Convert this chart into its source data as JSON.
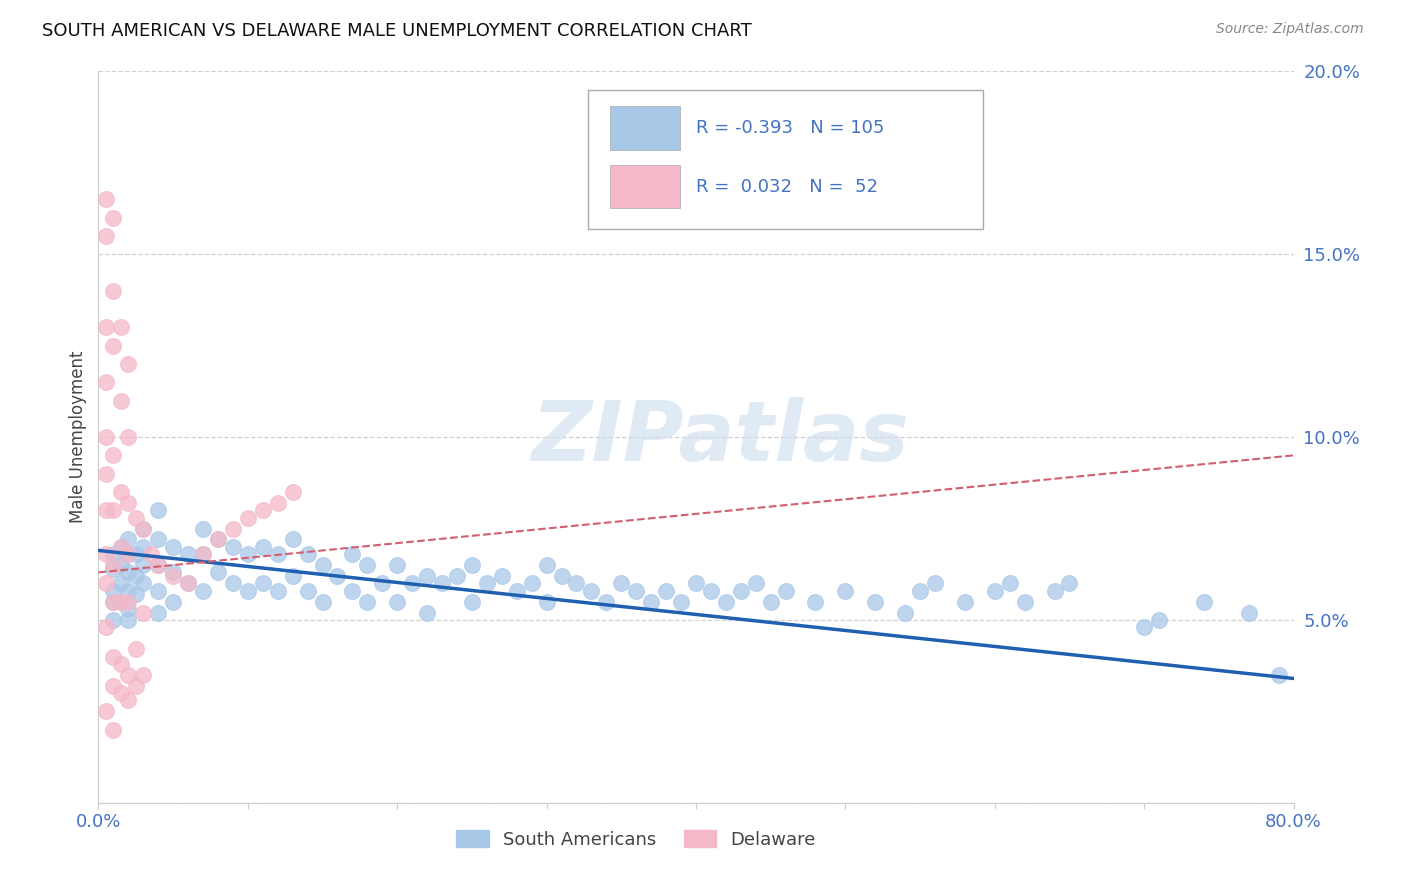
{
  "title": "SOUTH AMERICAN VS DELAWARE MALE UNEMPLOYMENT CORRELATION CHART",
  "source": "Source: ZipAtlas.com",
  "ylabel": "Male Unemployment",
  "xlim": [
    0.0,
    0.8
  ],
  "ylim": [
    0.0,
    0.2
  ],
  "yticks": [
    0.0,
    0.05,
    0.1,
    0.15,
    0.2
  ],
  "ytick_labels_right": [
    "",
    "5.0%",
    "10.0%",
    "15.0%",
    "20.0%"
  ],
  "xticks": [
    0.0,
    0.1,
    0.2,
    0.3,
    0.4,
    0.5,
    0.6,
    0.7,
    0.8
  ],
  "xtick_labels": [
    "0.0%",
    "",
    "",
    "",
    "",
    "",
    "",
    "",
    "80.0%"
  ],
  "blue_R": "-0.393",
  "blue_N": "105",
  "pink_R": "0.032",
  "pink_N": "52",
  "blue_color": "#a8c8e8",
  "pink_color": "#f4b8c8",
  "blue_line_color": "#2060b0",
  "pink_line_color": "#d06070",
  "blue_line_start_y": 0.069,
  "blue_line_end_y": 0.034,
  "pink_line_start_y": 0.063,
  "pink_line_end_y": 0.095,
  "watermark_text": "ZIPatlas",
  "blue_scatter_x": [
    0.01,
    0.01,
    0.01,
    0.01,
    0.01,
    0.015,
    0.015,
    0.015,
    0.015,
    0.02,
    0.02,
    0.02,
    0.02,
    0.02,
    0.02,
    0.025,
    0.025,
    0.025,
    0.03,
    0.03,
    0.03,
    0.03,
    0.04,
    0.04,
    0.04,
    0.04,
    0.04,
    0.05,
    0.05,
    0.05,
    0.06,
    0.06,
    0.07,
    0.07,
    0.07,
    0.08,
    0.08,
    0.09,
    0.09,
    0.1,
    0.1,
    0.11,
    0.11,
    0.12,
    0.12,
    0.13,
    0.13,
    0.14,
    0.14,
    0.15,
    0.15,
    0.16,
    0.17,
    0.17,
    0.18,
    0.18,
    0.19,
    0.2,
    0.2,
    0.21,
    0.22,
    0.22,
    0.23,
    0.24,
    0.25,
    0.25,
    0.26,
    0.27,
    0.28,
    0.29,
    0.3,
    0.3,
    0.31,
    0.32,
    0.33,
    0.34,
    0.35,
    0.36,
    0.37,
    0.38,
    0.39,
    0.4,
    0.41,
    0.42,
    0.43,
    0.44,
    0.45,
    0.46,
    0.48,
    0.5,
    0.52,
    0.54,
    0.55,
    0.56,
    0.58,
    0.6,
    0.61,
    0.62,
    0.64,
    0.65,
    0.7,
    0.71,
    0.74,
    0.77,
    0.79
  ],
  "blue_scatter_y": [
    0.068,
    0.064,
    0.058,
    0.055,
    0.05,
    0.07,
    0.065,
    0.06,
    0.055,
    0.072,
    0.068,
    0.063,
    0.058,
    0.053,
    0.05,
    0.068,
    0.062,
    0.057,
    0.075,
    0.07,
    0.065,
    0.06,
    0.08,
    0.072,
    0.065,
    0.058,
    0.052,
    0.07,
    0.063,
    0.055,
    0.068,
    0.06,
    0.075,
    0.068,
    0.058,
    0.072,
    0.063,
    0.07,
    0.06,
    0.068,
    0.058,
    0.07,
    0.06,
    0.068,
    0.058,
    0.072,
    0.062,
    0.068,
    0.058,
    0.065,
    0.055,
    0.062,
    0.068,
    0.058,
    0.065,
    0.055,
    0.06,
    0.065,
    0.055,
    0.06,
    0.062,
    0.052,
    0.06,
    0.062,
    0.065,
    0.055,
    0.06,
    0.062,
    0.058,
    0.06,
    0.065,
    0.055,
    0.062,
    0.06,
    0.058,
    0.055,
    0.06,
    0.058,
    0.055,
    0.058,
    0.055,
    0.06,
    0.058,
    0.055,
    0.058,
    0.06,
    0.055,
    0.058,
    0.055,
    0.058,
    0.055,
    0.052,
    0.058,
    0.06,
    0.055,
    0.058,
    0.06,
    0.055,
    0.058,
    0.06,
    0.048,
    0.05,
    0.055,
    0.052,
    0.035
  ],
  "pink_scatter_x": [
    0.005,
    0.005,
    0.005,
    0.005,
    0.005,
    0.005,
    0.005,
    0.005,
    0.005,
    0.005,
    0.01,
    0.01,
    0.01,
    0.01,
    0.01,
    0.01,
    0.01,
    0.01,
    0.015,
    0.015,
    0.015,
    0.015,
    0.015,
    0.015,
    0.02,
    0.02,
    0.02,
    0.02,
    0.02,
    0.02,
    0.025,
    0.025,
    0.03,
    0.03,
    0.035,
    0.04,
    0.05,
    0.06,
    0.07,
    0.08,
    0.09,
    0.1,
    0.11,
    0.12,
    0.13,
    0.005,
    0.01,
    0.01,
    0.015,
    0.02,
    0.025,
    0.03
  ],
  "pink_scatter_y": [
    0.165,
    0.155,
    0.13,
    0.115,
    0.1,
    0.09,
    0.08,
    0.068,
    0.06,
    0.048,
    0.16,
    0.14,
    0.125,
    0.095,
    0.08,
    0.065,
    0.055,
    0.04,
    0.13,
    0.11,
    0.085,
    0.07,
    0.055,
    0.038,
    0.12,
    0.1,
    0.082,
    0.068,
    0.055,
    0.035,
    0.078,
    0.042,
    0.075,
    0.052,
    0.068,
    0.065,
    0.062,
    0.06,
    0.068,
    0.072,
    0.075,
    0.078,
    0.08,
    0.082,
    0.085,
    0.025,
    0.032,
    0.02,
    0.03,
    0.028,
    0.032,
    0.035
  ]
}
